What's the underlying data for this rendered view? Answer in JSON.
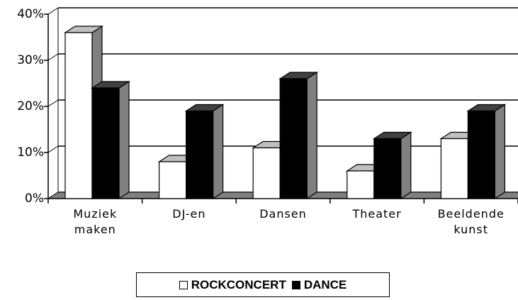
{
  "chart_data": {
    "type": "bar3d",
    "categories": [
      "Muziek maken",
      "DJ-en",
      "Dansen",
      "Theater",
      "Beeldende kunst"
    ],
    "series": [
      {
        "name": "ROCKCONCERT",
        "color": "#ffffff",
        "values": [
          36,
          8,
          11,
          6,
          13
        ]
      },
      {
        "name": "DANCE",
        "color": "#000000",
        "values": [
          24,
          19,
          26,
          13,
          19
        ]
      }
    ],
    "ylim": [
      0,
      40
    ],
    "yticks": [
      {
        "value": 0,
        "label": "0%"
      },
      {
        "value": 10,
        "label": "10%"
      },
      {
        "value": 20,
        "label": "20%"
      },
      {
        "value": 30,
        "label": "30%"
      },
      {
        "value": 40,
        "label": "40%"
      }
    ],
    "grid": true,
    "legend": "bottom"
  }
}
